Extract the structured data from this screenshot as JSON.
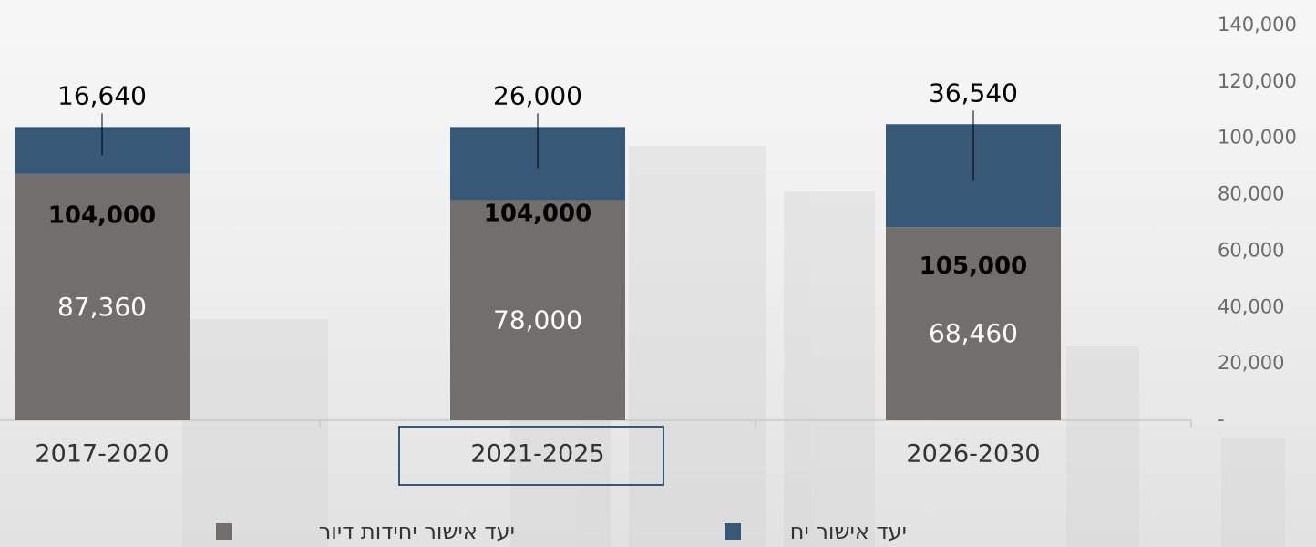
{
  "chart_data": {
    "type": "stacked-bar",
    "categories": [
      "2017-2020",
      "2021-2025",
      "2026-2030"
    ],
    "series": [
      {
        "name": "יעד אישור יחידות דיור",
        "color": "#726e6c",
        "values": [
          87360,
          78000,
          68460
        ],
        "value_labels": [
          "87,360",
          "78,000",
          "68,460"
        ]
      },
      {
        "name": "יעד אישור יח",
        "color": "#375877",
        "values": [
          16640,
          26000,
          36540
        ],
        "value_labels": [
          "16,640",
          "26,000",
          "36,540"
        ]
      }
    ],
    "totals": {
      "values": [
        104000,
        104000,
        105000
      ],
      "value_labels": [
        "104,000",
        "104,000",
        "105,000"
      ]
    },
    "ylim": [
      0,
      140000
    ],
    "yticks": [
      {
        "value": 0,
        "label": "-"
      },
      {
        "value": 20000,
        "label": "20,000"
      },
      {
        "value": 40000,
        "label": "40,000"
      },
      {
        "value": 60000,
        "label": "60,000"
      },
      {
        "value": 80000,
        "label": "80,000"
      },
      {
        "value": 100000,
        "label": "100,000"
      },
      {
        "value": 120000,
        "label": "120,000"
      },
      {
        "value": 140000,
        "label": "140,000"
      }
    ],
    "grid": false
  }
}
